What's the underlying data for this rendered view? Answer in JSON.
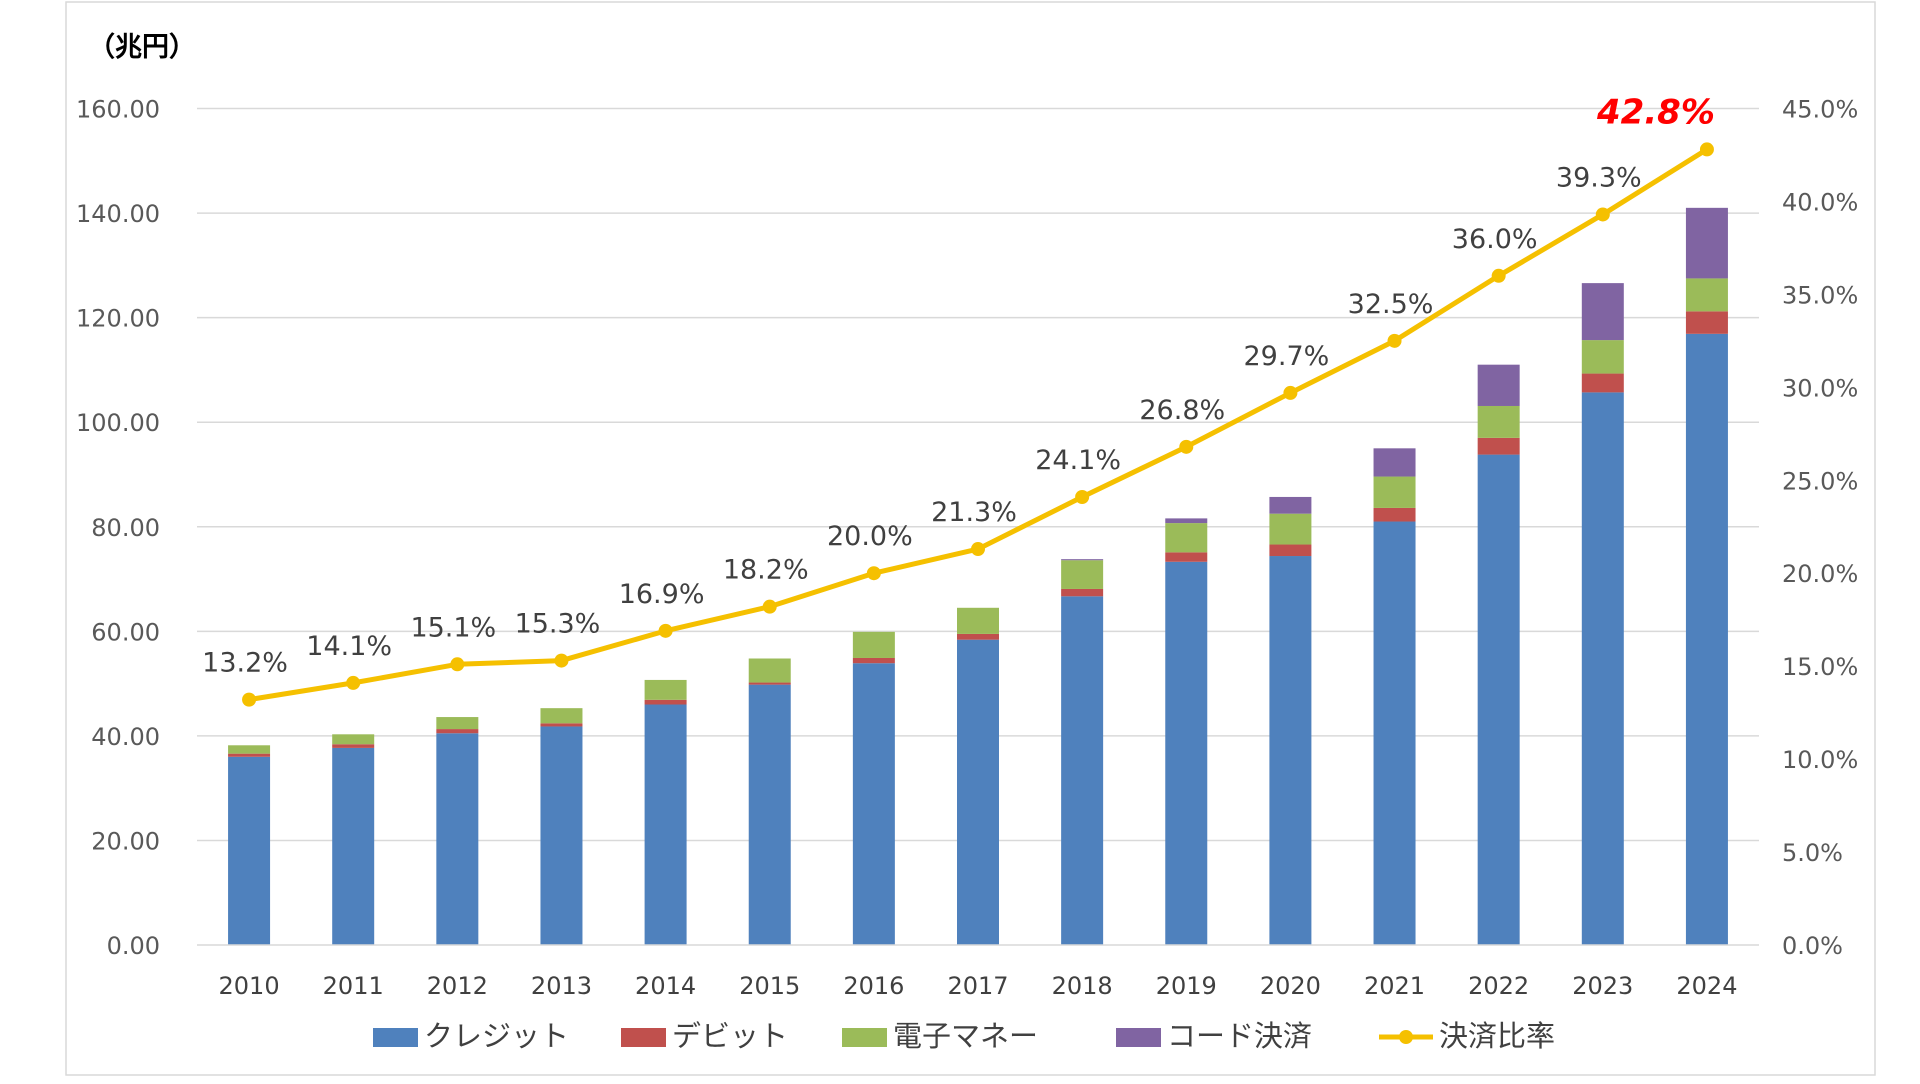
{
  "chart_data": {
    "type": "bar",
    "stacked": true,
    "unit_label": "（兆円）",
    "categories": [
      "2010",
      "2011",
      "2012",
      "2013",
      "2014",
      "2015",
      "2016",
      "2017",
      "2018",
      "2019",
      "2020",
      "2021",
      "2022",
      "2023",
      "2024"
    ],
    "series": [
      {
        "name": "クレジット",
        "type": "bar",
        "color": "#4F81BD",
        "values": [
          36.0,
          37.7,
          40.5,
          41.8,
          46.0,
          49.8,
          53.9,
          58.4,
          66.7,
          73.3,
          74.4,
          81.0,
          93.8,
          105.7,
          116.9
        ]
      },
      {
        "name": "デビット",
        "type": "bar",
        "color": "#C0504D",
        "values": [
          0.6,
          0.7,
          0.8,
          0.6,
          0.9,
          0.4,
          1.0,
          1.1,
          1.4,
          1.8,
          2.2,
          2.6,
          3.2,
          3.6,
          4.3
        ]
      },
      {
        "name": "電子マネー",
        "type": "bar",
        "color": "#9BBB59",
        "values": [
          1.6,
          1.9,
          2.3,
          2.9,
          3.8,
          4.6,
          5.0,
          5.0,
          5.5,
          5.6,
          5.9,
          6.0,
          6.1,
          6.4,
          6.3
        ]
      },
      {
        "name": "コード決済",
        "type": "bar",
        "color": "#8064A2",
        "values": [
          0,
          0,
          0,
          0,
          0,
          0,
          0,
          0,
          0.2,
          0.9,
          3.2,
          5.4,
          7.9,
          10.9,
          13.5
        ]
      },
      {
        "name": "決済比率",
        "type": "line",
        "axis": "right",
        "color": "#F5C000",
        "values": [
          13.2,
          14.1,
          15.1,
          15.3,
          16.9,
          18.2,
          20.0,
          21.3,
          24.1,
          26.8,
          29.7,
          32.5,
          36.0,
          39.3,
          42.8
        ],
        "labels": [
          "13.2%",
          "14.1%",
          "15.1%",
          "15.3%",
          "16.9%",
          "18.2%",
          "20.0%",
          "21.3%",
          "24.1%",
          "26.8%",
          "29.7%",
          "32.5%",
          "36.0%",
          "39.3%",
          "42.8%"
        ],
        "highlight_last": true,
        "highlight_color": "#FF0000"
      }
    ],
    "y_left": {
      "lim": [
        0,
        160
      ],
      "ticks": [
        "0.00",
        "20.00",
        "40.00",
        "60.00",
        "80.00",
        "100.00",
        "120.00",
        "140.00",
        "160.00"
      ]
    },
    "y_right": {
      "lim": [
        0,
        45
      ],
      "ticks": [
        "0.0%",
        "5.0%",
        "10.0%",
        "15.0%",
        "20.0%",
        "25.0%",
        "30.0%",
        "35.0%",
        "40.0%",
        "45.0%"
      ]
    },
    "grid": true,
    "legend_position": "bottom"
  }
}
